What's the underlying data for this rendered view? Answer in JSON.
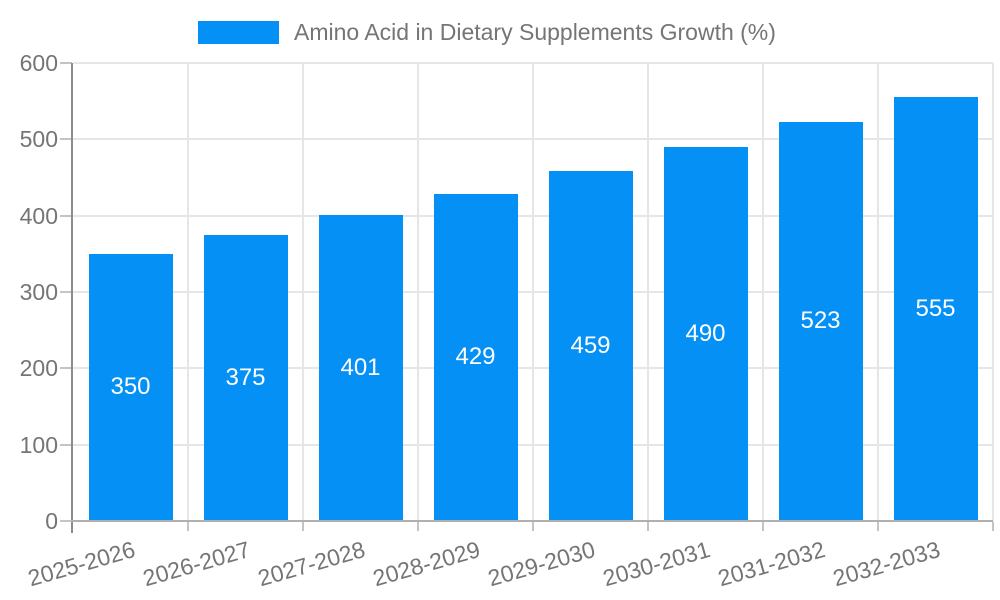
{
  "chart_data": {
    "type": "bar",
    "title": "Amino Acid in Dietary Supplements Growth (%)",
    "categories": [
      "2025-2026",
      "2026-2027",
      "2027-2028",
      "2028-2029",
      "2029-2030",
      "2030-2031",
      "2031-2032",
      "2032-2033"
    ],
    "values": [
      350,
      375,
      401,
      429,
      459,
      490,
      523,
      555
    ],
    "yticks": [
      "0",
      "100",
      "200",
      "300",
      "400",
      "500",
      "600"
    ],
    "ylim": [
      0,
      600
    ],
    "xlabel": "",
    "ylabel": "",
    "grid": true,
    "legend_position": "top",
    "colors": {
      "bar": "#0590f5",
      "value_label": "#ffffff",
      "axis_text": "#757575",
      "gridline": "#e6e6e6",
      "y_axis_line": "#8c8c8c",
      "x_axis_line": "#b0b0b0",
      "tick_mark": "#c4c4c4",
      "background": "#ffffff"
    }
  }
}
